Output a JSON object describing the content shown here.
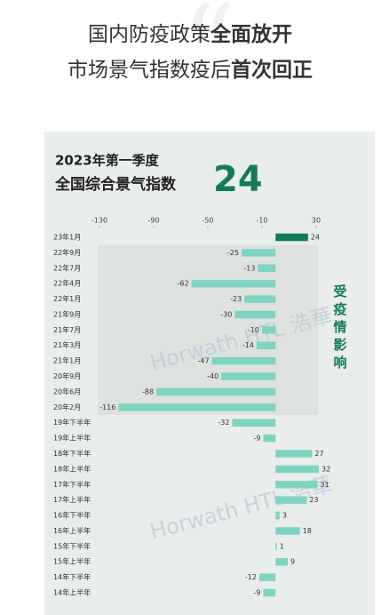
{
  "header": {
    "title": [
      [
        "国内防疫政策",
        "全面放开"
      ],
      [
        "市场景气指数疫后",
        "首次回正"
      ]
    ]
  },
  "chart_data": {
    "type": "barh",
    "subtitle": "2023年第一季度",
    "title": "全国综合景气指数",
    "title_value": "24",
    "annotation": "受疫情影响",
    "watermark": "Horwath HTL 浩華",
    "categories": [
      "23年1月",
      "22年9月",
      "22年7月",
      "22年4月",
      "22年1月",
      "21年9月",
      "21年7月",
      "21年3月",
      "21年1月",
      "20年9月",
      "20年6月",
      "20年2月",
      "19年下半年",
      "19年上半年",
      "18年下半年",
      "18年上半年",
      "17年下半年",
      "17年上半年",
      "16年下半年",
      "16年上半年",
      "15年下半年",
      "15年上半年",
      "14年下半年",
      "14年上半年"
    ],
    "values": [
      24,
      -25,
      -13,
      -62,
      -23,
      -30,
      -10,
      -14,
      -47,
      -40,
      -88,
      -116,
      -32,
      -9,
      27,
      32,
      31,
      23,
      3,
      18,
      1,
      9,
      -12,
      -9
    ],
    "colors": [
      "#157a5c",
      "#7fd3c1",
      "#7fd3c1",
      "#7fd3c1",
      "#7fd3c1",
      "#7fd3c1",
      "#7fd3c1",
      "#7fd3c1",
      "#7fd3c1",
      "#7fd3c1",
      "#7fd3c1",
      "#7fd3c1",
      "#7fd3c1",
      "#7fd3c1",
      "#7fd3c1",
      "#7fd3c1",
      "#7fd3c1",
      "#7fd3c1",
      "#7fd3c1",
      "#7fd3c1",
      "#7fd3c1",
      "#7fd3c1",
      "#7fd3c1",
      "#7fd3c1"
    ],
    "xlim": [
      -130,
      30
    ],
    "xticks": [
      -130,
      -90,
      -50,
      -10,
      30
    ]
  }
}
